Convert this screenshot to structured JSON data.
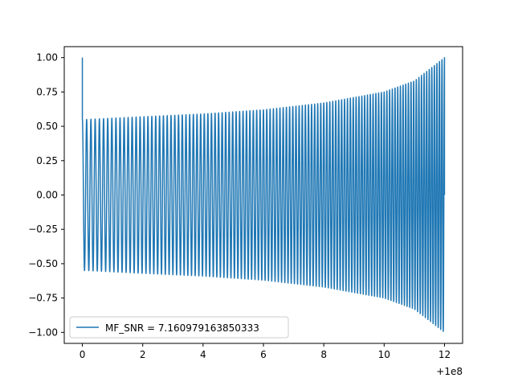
{
  "chart_data": {
    "type": "line",
    "title": "",
    "xlabel": "",
    "ylabel": "",
    "x_offset_label": "+1e8",
    "xlim": [
      -0.6,
      12.6
    ],
    "ylim": [
      -1.08,
      1.08
    ],
    "x_ticks": [
      {
        "value": 0,
        "label": "0"
      },
      {
        "value": 2,
        "label": "2"
      },
      {
        "value": 4,
        "label": "4"
      },
      {
        "value": 6,
        "label": "6"
      },
      {
        "value": 8,
        "label": "8"
      },
      {
        "value": 10,
        "label": "10"
      },
      {
        "value": 12,
        "label": "12"
      }
    ],
    "y_ticks": [
      {
        "value": 1.0,
        "label": "1.00"
      },
      {
        "value": 0.75,
        "label": "0.75"
      },
      {
        "value": 0.5,
        "label": "0.50"
      },
      {
        "value": 0.25,
        "label": "0.25"
      },
      {
        "value": 0.0,
        "label": "0.00"
      },
      {
        "value": -0.25,
        "label": "−0.25"
      },
      {
        "value": -0.5,
        "label": "−0.50"
      },
      {
        "value": -0.75,
        "label": "−0.75"
      },
      {
        "value": -1.0,
        "label": "−1.00"
      }
    ],
    "grid": false,
    "legend": {
      "position": "lower-left"
    },
    "series": [
      {
        "name": "MF_SNR = 7.160979163850333",
        "color": "#1f77b4",
        "description": "chirp: initial spike to 1.0 at x=0, then oscillation with envelope growing from ~0.55 to ~1.0 and frequency increasing toward x=12",
        "x_range": [
          0,
          12
        ],
        "initial_value": 1.0,
        "envelope": {
          "x": [
            0.15,
            2,
            4,
            6,
            8,
            10,
            11,
            12
          ],
          "amplitude": [
            0.55,
            0.57,
            0.59,
            0.62,
            0.67,
            0.75,
            0.83,
            1.0
          ]
        },
        "cycles_per_unit": {
          "x": [
            0,
            6,
            12
          ],
          "value": [
            7.0,
            9.0,
            12.0
          ]
        }
      }
    ]
  }
}
